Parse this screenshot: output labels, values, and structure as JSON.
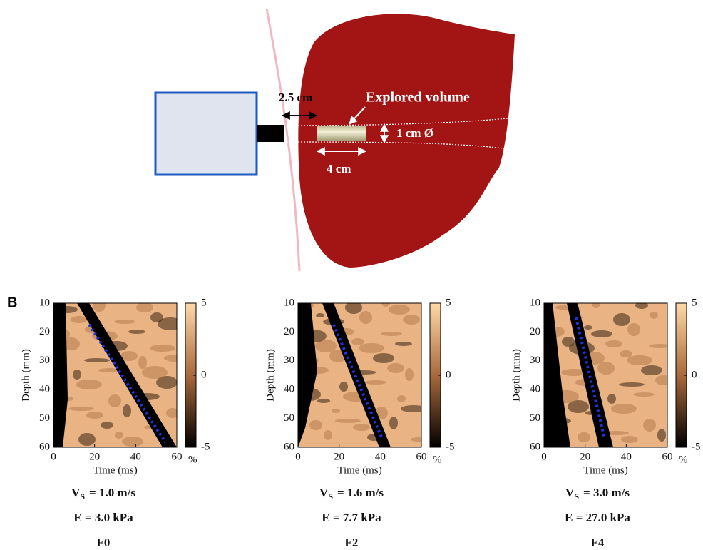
{
  "diagram": {
    "probe_distance": "2.5 cm",
    "volume_label": "Explored volume",
    "diameter": "1 cm Ø",
    "length": "4 cm"
  },
  "panel_label": "B",
  "panels": [
    {
      "y_label": "Depth (mm)",
      "x_label": "Time (ms)",
      "yticks": [
        10,
        20,
        30,
        40,
        50,
        60
      ],
      "xticks": [
        0,
        20,
        40,
        60
      ],
      "colorbar_ticks": [
        5,
        0,
        -5
      ],
      "colorbar_unit": "%",
      "vs": {
        "symbol": "V",
        "subscript": "S",
        "rest": "= 1.0 m/s"
      },
      "modulus": "E = 3.0 kPa",
      "stage": "F0"
    },
    {
      "y_label": "Depth (mm)",
      "x_label": "Time (ms)",
      "yticks": [
        10,
        20,
        30,
        40,
        50,
        60
      ],
      "xticks": [
        0,
        20,
        40,
        60
      ],
      "colorbar_ticks": [
        5,
        0,
        -5
      ],
      "colorbar_unit": "%",
      "vs": {
        "symbol": "V",
        "subscript": "S",
        "rest": "= 1.6 m/s"
      },
      "modulus": "E = 7.7 kPa",
      "stage": "F2"
    },
    {
      "y_label": "Depth (mm)",
      "x_label": "Time (ms)",
      "yticks": [
        10,
        20,
        30,
        40,
        50,
        60
      ],
      "xticks": [
        0,
        20,
        40,
        60
      ],
      "colorbar_ticks": [
        5,
        0,
        -5
      ],
      "colorbar_unit": "%",
      "vs": {
        "symbol": "V",
        "subscript": "S",
        "rest": "= 3.0 m/s"
      },
      "modulus": "E = 27.0 kPa",
      "stage": "F4"
    }
  ]
}
